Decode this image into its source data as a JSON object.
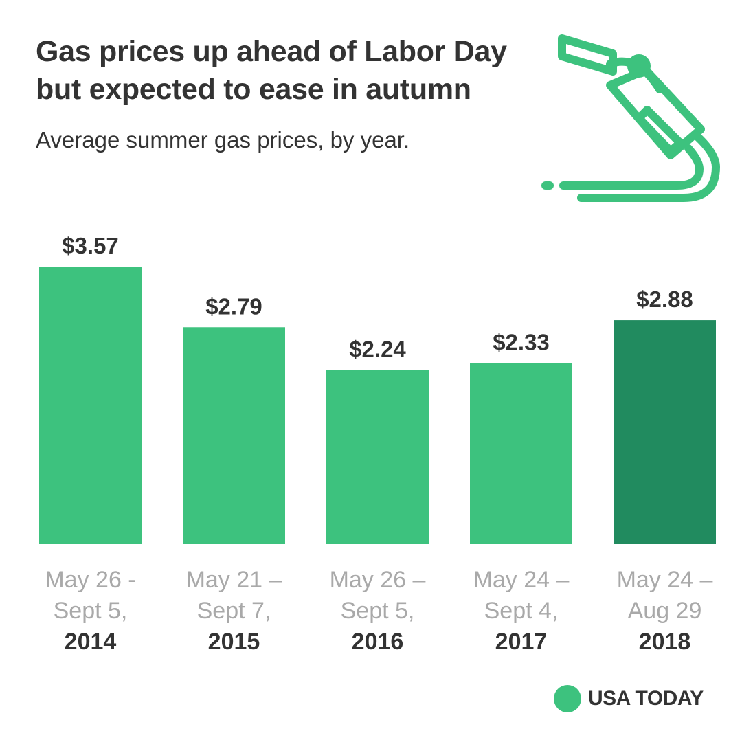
{
  "title_lines": [
    "Gas prices up ahead of Labor Day",
    "but expected to ease in autumn"
  ],
  "subtitle": "Average summer gas prices, by year.",
  "logo_text": "USA TODAY",
  "icons": {
    "header": "gas-pump-nozzle-icon",
    "logo": "usa-today-dot-icon"
  },
  "colors": {
    "bar": "#3dc27e",
    "highlight": "#218b5f",
    "text": "#333333",
    "muted": "#a9a9a9"
  },
  "chart_data": {
    "type": "bar",
    "title": "Gas prices up ahead of Labor Day but expected to ease in autumn",
    "subtitle": "Average summer gas prices, by year.",
    "categories": [
      {
        "date_lines": [
          "May 26 -",
          "Sept 5,"
        ],
        "year": "2014"
      },
      {
        "date_lines": [
          "May 21 –",
          "Sept 7,"
        ],
        "year": "2015"
      },
      {
        "date_lines": [
          "May 26 –",
          "Sept 5,"
        ],
        "year": "2016"
      },
      {
        "date_lines": [
          "May 24 –",
          "Sept 4,"
        ],
        "year": "2017"
      },
      {
        "date_lines": [
          "May 24 –",
          "Aug 29"
        ],
        "year": "2018"
      }
    ],
    "values": [
      3.57,
      2.79,
      2.24,
      2.33,
      2.88
    ],
    "value_labels": [
      "$3.57",
      "$2.79",
      "$2.24",
      "$2.33",
      "$2.88"
    ],
    "highlight_index": 4,
    "ylim": [
      0,
      3.57
    ],
    "grid": false,
    "legend": "none"
  }
}
